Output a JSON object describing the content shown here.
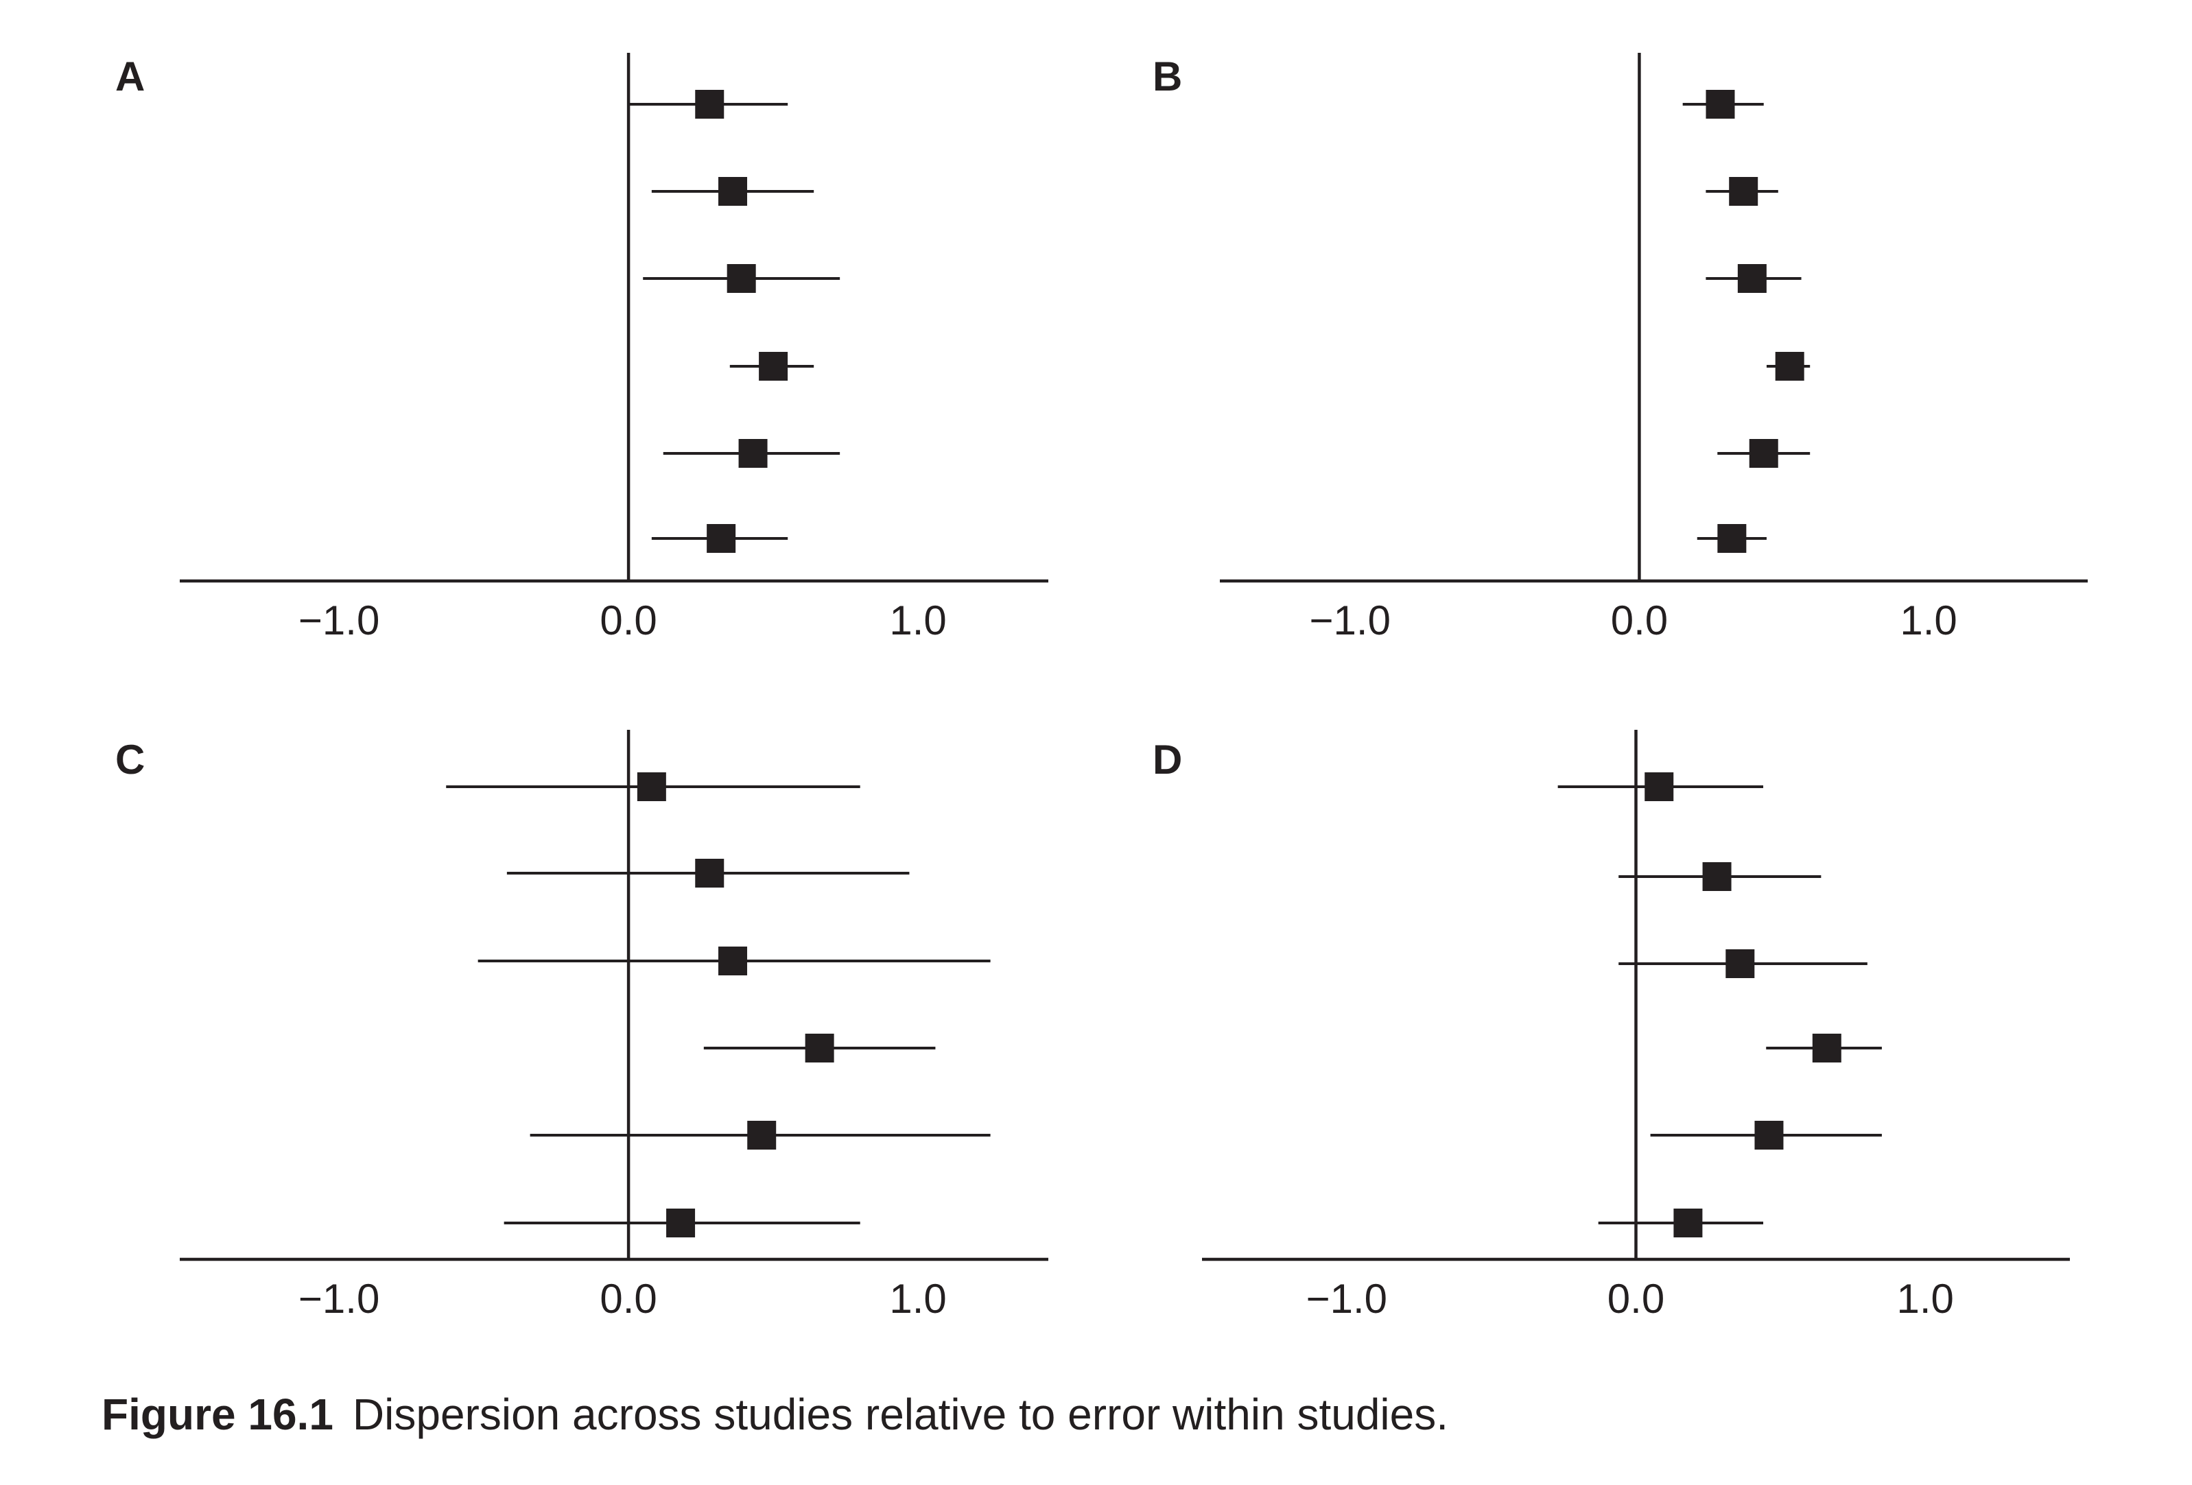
{
  "chart_data": [
    {
      "type": "forest",
      "panel": "A",
      "x_ticks": [
        "−1.0",
        "0.0",
        "1.0"
      ],
      "x_tick_values": [
        -1.0,
        0.0,
        1.0
      ],
      "xlim": [
        -1.55,
        1.45
      ],
      "reference_line": 0.0,
      "studies": [
        {
          "estimate": 0.28,
          "lower": 0.0,
          "upper": 0.55
        },
        {
          "estimate": 0.36,
          "lower": 0.08,
          "upper": 0.64
        },
        {
          "estimate": 0.39,
          "lower": 0.05,
          "upper": 0.73
        },
        {
          "estimate": 0.5,
          "lower": 0.35,
          "upper": 0.64
        },
        {
          "estimate": 0.43,
          "lower": 0.12,
          "upper": 0.73
        },
        {
          "estimate": 0.32,
          "lower": 0.08,
          "upper": 0.55
        }
      ]
    },
    {
      "type": "forest",
      "panel": "B",
      "x_ticks": [
        "−1.0",
        "0.0",
        "1.0"
      ],
      "x_tick_values": [
        -1.0,
        0.0,
        1.0
      ],
      "xlim": [
        -1.45,
        1.55
      ],
      "reference_line": 0.0,
      "studies": [
        {
          "estimate": 0.28,
          "lower": 0.15,
          "upper": 0.43
        },
        {
          "estimate": 0.36,
          "lower": 0.23,
          "upper": 0.48
        },
        {
          "estimate": 0.39,
          "lower": 0.23,
          "upper": 0.56
        },
        {
          "estimate": 0.52,
          "lower": 0.44,
          "upper": 0.59
        },
        {
          "estimate": 0.43,
          "lower": 0.27,
          "upper": 0.59
        },
        {
          "estimate": 0.32,
          "lower": 0.2,
          "upper": 0.44
        }
      ]
    },
    {
      "type": "forest",
      "panel": "C",
      "x_ticks": [
        "−1.0",
        "0.0",
        "1.0"
      ],
      "x_tick_values": [
        -1.0,
        0.0,
        1.0
      ],
      "xlim": [
        -1.55,
        1.45
      ],
      "reference_line": 0.0,
      "studies": [
        {
          "estimate": 0.08,
          "lower": -0.63,
          "upper": 0.8
        },
        {
          "estimate": 0.28,
          "lower": -0.42,
          "upper": 0.97
        },
        {
          "estimate": 0.36,
          "lower": -0.52,
          "upper": 1.25
        },
        {
          "estimate": 0.66,
          "lower": 0.26,
          "upper": 1.06
        },
        {
          "estimate": 0.46,
          "lower": -0.34,
          "upper": 1.25
        },
        {
          "estimate": 0.18,
          "lower": -0.43,
          "upper": 0.8
        }
      ]
    },
    {
      "type": "forest",
      "panel": "D",
      "x_ticks": [
        "−1.0",
        "0.0",
        "1.0"
      ],
      "x_tick_values": [
        -1.0,
        0.0,
        1.0
      ],
      "xlim": [
        -1.5,
        1.5
      ],
      "reference_line": 0.0,
      "studies": [
        {
          "estimate": 0.08,
          "lower": -0.27,
          "upper": 0.44
        },
        {
          "estimate": 0.28,
          "lower": -0.06,
          "upper": 0.64
        },
        {
          "estimate": 0.36,
          "lower": -0.06,
          "upper": 0.8
        },
        {
          "estimate": 0.66,
          "lower": 0.45,
          "upper": 0.85
        },
        {
          "estimate": 0.46,
          "lower": 0.05,
          "upper": 0.85
        },
        {
          "estimate": 0.18,
          "lower": -0.13,
          "upper": 0.44
        }
      ]
    }
  ],
  "caption": {
    "figure_number": "Figure 16.1",
    "text": "Dispersion across studies relative to error within studies."
  }
}
